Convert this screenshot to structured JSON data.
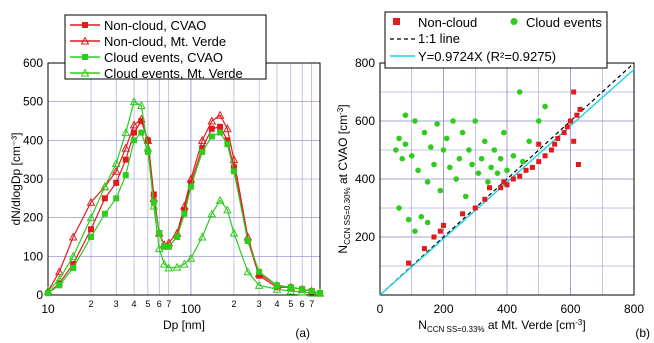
{
  "colors": {
    "red": "#e31a1c",
    "green": "#2ecc1c",
    "cyan": "#19d3e6",
    "grid": "#8888cc"
  },
  "chart_data": [
    {
      "panel": "(a)",
      "type": "line",
      "xlabel": "Dp [nm]",
      "ylabel": "dN/dlogDp [cm⁻³]",
      "xscale": "log",
      "xlim": [
        10,
        800
      ],
      "ylim": [
        0,
        600
      ],
      "grid": true,
      "legend_position": "top-left",
      "y_ticks": [
        "0",
        "100",
        "200",
        "300",
        "400",
        "500",
        "600"
      ],
      "x_major_ticks": [
        {
          "value": 10,
          "label": "10"
        },
        {
          "value": 100,
          "label": "100"
        }
      ],
      "x_minor_ticks": [
        {
          "value": 20,
          "label": "2"
        },
        {
          "value": 30,
          "label": "3"
        },
        {
          "value": 40,
          "label": "4"
        },
        {
          "value": 50,
          "label": "5"
        },
        {
          "value": 60,
          "label": "6"
        },
        {
          "value": 70,
          "label": "7"
        },
        {
          "value": 200,
          "label": "2"
        },
        {
          "value": 300,
          "label": "3"
        },
        {
          "value": 400,
          "label": "4"
        },
        {
          "value": 500,
          "label": "5"
        },
        {
          "value": 600,
          "label": "6"
        },
        {
          "value": 700,
          "label": "7"
        }
      ],
      "series": [
        {
          "name": "Non-cloud, CVAO",
          "color": "#e31a1c",
          "marker": "square-filled",
          "x": [
            10,
            12,
            15,
            20,
            25,
            30,
            35,
            40,
            45,
            50,
            55,
            60,
            65,
            70,
            80,
            90,
            100,
            120,
            140,
            160,
            180,
            200,
            250,
            300,
            400,
            500,
            600,
            700,
            800
          ],
          "y": [
            5,
            30,
            80,
            170,
            250,
            290,
            350,
            420,
            450,
            400,
            260,
            160,
            125,
            125,
            150,
            220,
            290,
            380,
            430,
            435,
            400,
            330,
            140,
            50,
            20,
            20,
            15,
            10,
            5
          ]
        },
        {
          "name": "Non-cloud, Mt. Verde",
          "color": "#e31a1c",
          "marker": "triangle-open",
          "x": [
            10,
            12,
            15,
            20,
            25,
            30,
            35,
            40,
            45,
            50,
            55,
            60,
            65,
            70,
            80,
            90,
            100,
            120,
            140,
            160,
            180,
            200,
            250,
            300,
            400,
            500,
            600,
            700,
            800
          ],
          "y": [
            10,
            60,
            150,
            240,
            280,
            320,
            380,
            440,
            455,
            400,
            250,
            160,
            130,
            135,
            160,
            230,
            300,
            400,
            450,
            465,
            430,
            350,
            150,
            55,
            25,
            20,
            15,
            10,
            5
          ]
        },
        {
          "name": "Cloud events, CVAO",
          "color": "#2ecc1c",
          "marker": "square-filled",
          "x": [
            10,
            12,
            15,
            20,
            25,
            30,
            35,
            40,
            45,
            50,
            55,
            60,
            65,
            70,
            80,
            90,
            100,
            120,
            140,
            160,
            180,
            200,
            250,
            300,
            400,
            500,
            600,
            700,
            800
          ],
          "y": [
            5,
            25,
            70,
            150,
            210,
            250,
            310,
            400,
            420,
            370,
            240,
            160,
            125,
            125,
            150,
            210,
            280,
            370,
            410,
            420,
            390,
            320,
            140,
            60,
            25,
            20,
            15,
            10,
            5
          ]
        },
        {
          "name": "Cloud events, Mt. Verde",
          "color": "#2ecc1c",
          "marker": "triangle-open",
          "x": [
            10,
            12,
            15,
            20,
            25,
            30,
            35,
            40,
            45,
            50,
            55,
            60,
            65,
            70,
            80,
            90,
            100,
            120,
            140,
            160,
            180,
            200,
            250,
            300,
            400,
            500,
            600,
            700,
            800
          ],
          "y": [
            10,
            40,
            100,
            200,
            280,
            340,
            420,
            500,
            490,
            380,
            230,
            120,
            80,
            70,
            72,
            80,
            95,
            150,
            210,
            245,
            220,
            160,
            60,
            25,
            15,
            10,
            8,
            5,
            5
          ]
        }
      ]
    },
    {
      "panel": "(b)",
      "type": "scatter",
      "xlabel": "N CCN SS=0.33% at Mt. Verde [cm⁻³]",
      "ylabel": "N CCN SS=0.30% at CVAO [cm⁻³]",
      "xlim": [
        0,
        800
      ],
      "ylim": [
        0,
        800
      ],
      "grid": true,
      "legend_position": "top",
      "x_ticks": [
        "0",
        "200",
        "400",
        "600",
        "800"
      ],
      "y_ticks": [
        "200",
        "400",
        "600",
        "800"
      ],
      "series": [
        {
          "name": "Non-cloud",
          "color": "#e31a1c",
          "marker": "square",
          "points": [
            [
              90,
              110
            ],
            [
              140,
              160
            ],
            [
              170,
              200
            ],
            [
              190,
              220
            ],
            [
              200,
              240
            ],
            [
              260,
              280
            ],
            [
              300,
              300
            ],
            [
              330,
              330
            ],
            [
              345,
              370
            ],
            [
              380,
              370
            ],
            [
              390,
              390
            ],
            [
              400,
              380
            ],
            [
              420,
              400
            ],
            [
              440,
              410
            ],
            [
              460,
              430
            ],
            [
              480,
              440
            ],
            [
              500,
              460
            ],
            [
              500,
              520
            ],
            [
              520,
              480
            ],
            [
              540,
              500
            ],
            [
              550,
              520
            ],
            [
              560,
              540
            ],
            [
              580,
              560
            ],
            [
              590,
              580
            ],
            [
              600,
              600
            ],
            [
              610,
              700
            ],
            [
              620,
              620
            ],
            [
              630,
              640
            ],
            [
              610,
              530
            ],
            [
              625,
              450
            ]
          ]
        },
        {
          "name": "Cloud events",
          "color": "#2ecc1c",
          "marker": "circle",
          "points": [
            [
              50,
              500
            ],
            [
              60,
              540
            ],
            [
              70,
              470
            ],
            [
              80,
              620
            ],
            [
              80,
              520
            ],
            [
              100,
              480
            ],
            [
              110,
              600
            ],
            [
              120,
              430
            ],
            [
              140,
              560
            ],
            [
              150,
              390
            ],
            [
              160,
              510
            ],
            [
              170,
              450
            ],
            [
              180,
              590
            ],
            [
              190,
              360
            ],
            [
              200,
              500
            ],
            [
              210,
              540
            ],
            [
              220,
              440
            ],
            [
              230,
              600
            ],
            [
              240,
              400
            ],
            [
              250,
              470
            ],
            [
              260,
              560
            ],
            [
              270,
              340
            ],
            [
              280,
              500
            ],
            [
              290,
              450
            ],
            [
              300,
              600
            ],
            [
              310,
              420
            ],
            [
              320,
              470
            ],
            [
              330,
              530
            ],
            [
              340,
              390
            ],
            [
              350,
              440
            ],
            [
              360,
              500
            ],
            [
              370,
              420
            ],
            [
              380,
              470
            ],
            [
              390,
              560
            ],
            [
              400,
              430
            ],
            [
              420,
              480
            ],
            [
              440,
              700
            ],
            [
              450,
              460
            ],
            [
              470,
              530
            ],
            [
              500,
              600
            ],
            [
              520,
              650
            ],
            [
              60,
              300
            ],
            [
              90,
              260
            ],
            [
              110,
              220
            ],
            [
              130,
              270
            ],
            [
              150,
              250
            ]
          ]
        }
      ],
      "lines": [
        {
          "name": "1:1 line",
          "color": "#000000",
          "style": "dashed",
          "slope": 1.0
        },
        {
          "name": "Y=0.9724X (R²=0.9275)",
          "color": "#19d3e6",
          "style": "solid",
          "slope": 0.9724
        }
      ]
    }
  ]
}
